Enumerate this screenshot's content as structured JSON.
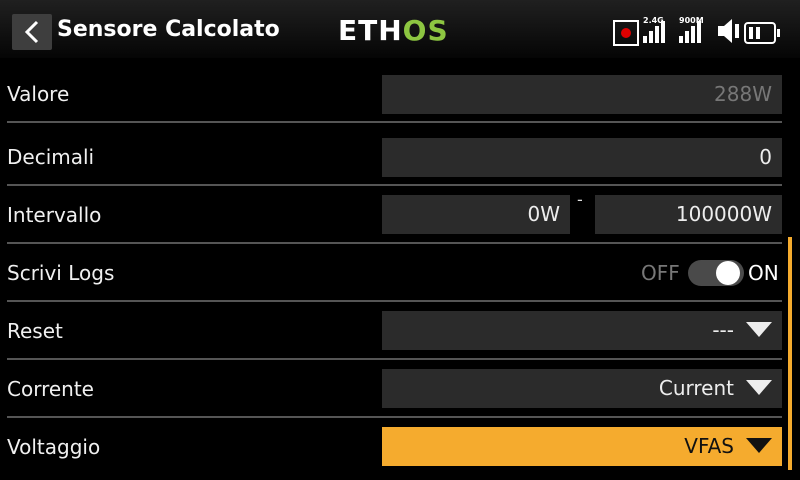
{
  "header": {
    "title": "Sensore Calcolato",
    "logo_part1": "ETH",
    "logo_part2": "OS",
    "signal1_label": "2.4G",
    "signal2_label": "900M"
  },
  "rows": {
    "valore": {
      "label": "Valore",
      "value": "288W"
    },
    "decimali": {
      "label": "Decimali",
      "value": "0"
    },
    "intervallo": {
      "label": "Intervallo",
      "min": "0W",
      "separator": "-",
      "max": "100000W"
    },
    "scrivi_logs": {
      "label": "Scrivi Logs",
      "off_label": "OFF",
      "on_label": "ON",
      "state": "on"
    },
    "reset": {
      "label": "Reset",
      "value": "---"
    },
    "corrente": {
      "label": "Corrente",
      "value": "Current"
    },
    "voltaggio": {
      "label": "Voltaggio",
      "value": "VFAS"
    }
  },
  "colors": {
    "accent": "#f5ab2e",
    "logo_green": "#8dc641"
  },
  "icons": [
    "back-arrow-icon",
    "record-icon",
    "signal-icon",
    "speaker-icon",
    "battery-icon",
    "dropdown-arrow-icon"
  ]
}
